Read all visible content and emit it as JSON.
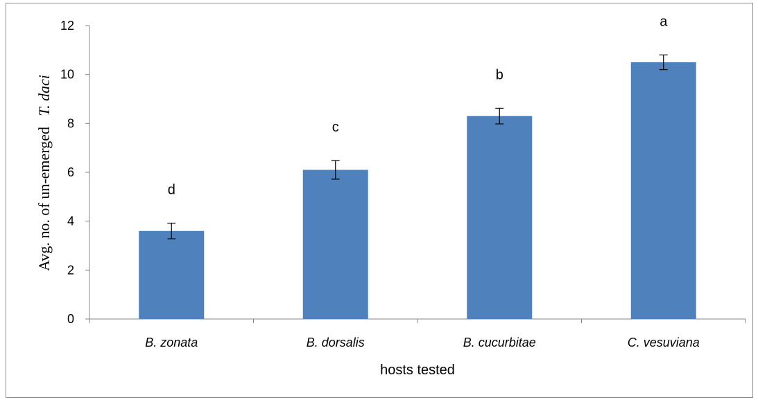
{
  "chart_data": {
    "type": "bar",
    "categories": [
      "B. zonata",
      "B. dorsalis",
      "B. cucurbitae",
      "C. vesuviana"
    ],
    "values": [
      3.6,
      6.1,
      8.3,
      10.5
    ],
    "errors": [
      0.32,
      0.38,
      0.32,
      0.3
    ],
    "significance_letters": [
      "d",
      "c",
      "b",
      "a"
    ],
    "xlabel": "hosts tested",
    "ylabel_prefix": "Avg. no. of un-emerged",
    "ylabel_species": "T. daci",
    "ylim": [
      0,
      12
    ],
    "yticks": [
      0,
      2,
      4,
      6,
      8,
      10,
      12
    ],
    "bar_color": "#4f81bd",
    "grid": false,
    "legend": "none"
  }
}
